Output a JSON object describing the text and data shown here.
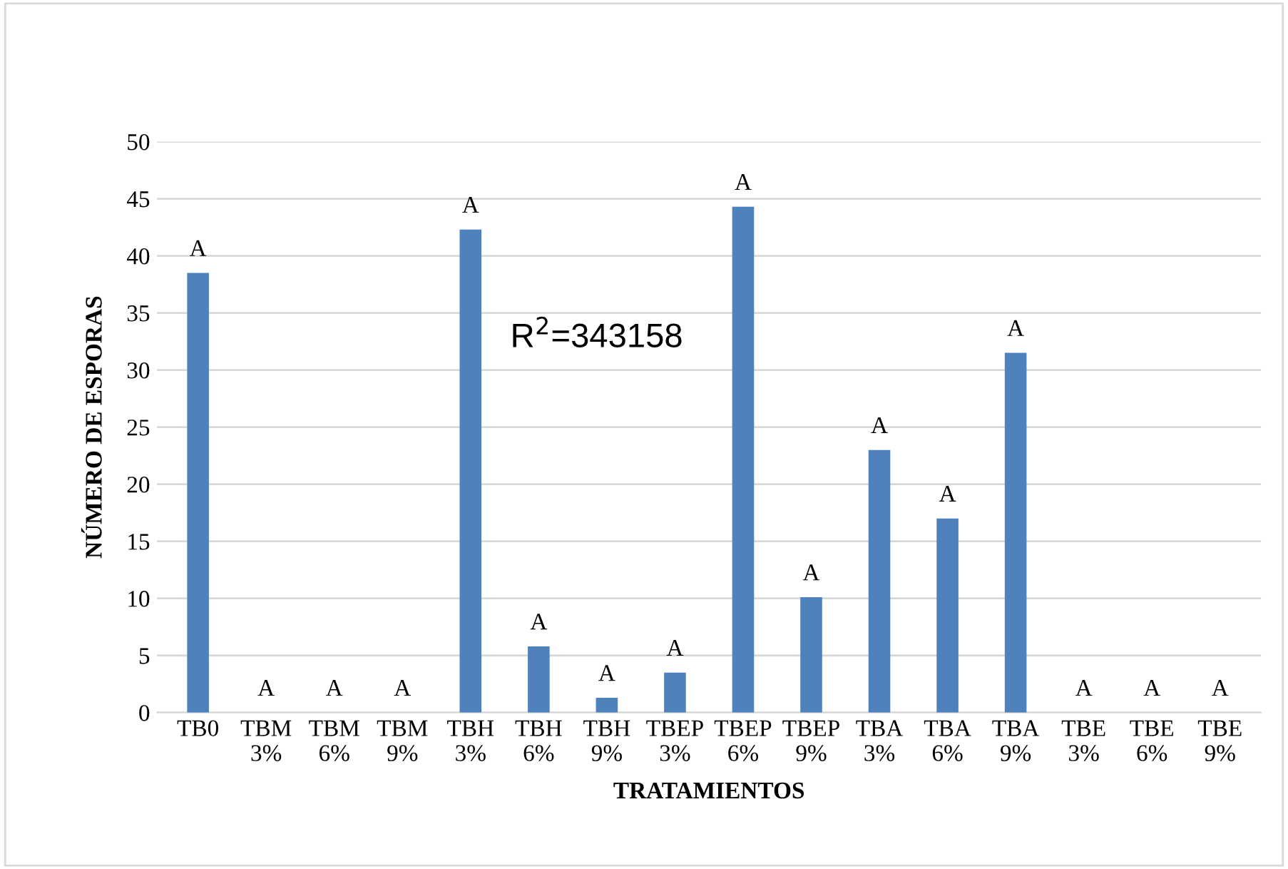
{
  "chart_data": {
    "type": "bar",
    "categories": [
      "TB0",
      "TBM\n3%",
      "TBM\n6%",
      "TBM\n9%",
      "TBH\n3%",
      "TBH\n6%",
      "TBH\n9%",
      "TBEP\n3%",
      "TBEP\n6%",
      "TBEP\n9%",
      "TBA\n3%",
      "TBA\n6%",
      "TBA\n9%",
      "TBE\n3%",
      "TBE\n6%",
      "TBE\n9%"
    ],
    "values": [
      38.5,
      0,
      0,
      0,
      42.3,
      5.8,
      1.3,
      3.5,
      44.3,
      10.1,
      23,
      17,
      31.5,
      0,
      0,
      0
    ],
    "value_labels": [
      "A",
      "A",
      "A",
      "A",
      "A",
      "A",
      "A",
      "A",
      "A",
      "A",
      "A",
      "A",
      "A",
      "A",
      "A",
      "A"
    ],
    "color": "#4f81bd",
    "xlabel": "TRATAMIENTOS",
    "ylabel": "NÚMERO DE ESPORAS",
    "annotations": [
      "R$^{2}$=343158"
    ],
    "ylim": [
      0,
      50
    ],
    "yticks": [
      0,
      5,
      10,
      15,
      20,
      25,
      30,
      35,
      40,
      45,
      50
    ],
    "grid": "y",
    "legend": false
  }
}
